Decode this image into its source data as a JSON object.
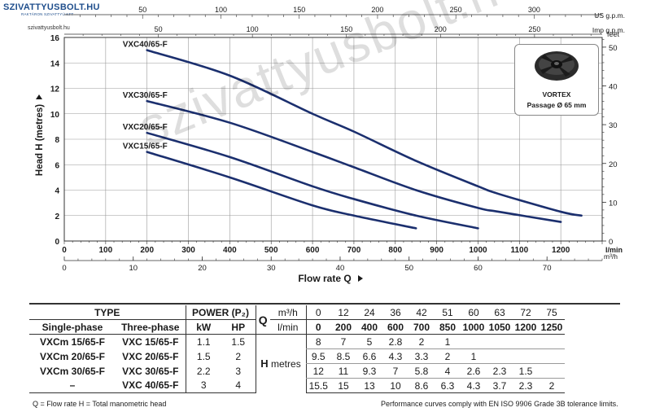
{
  "logo": {
    "main": "SZIVATTYUSBOLT.HU",
    "sub": "RAKTÁRON SZIVATTYÚ KFT",
    "small_url": "szivattyusbolt.hu"
  },
  "watermark": "szivattyusbolt.hu",
  "vortex": {
    "title": "VORTEX",
    "subtitle": "Passage Ø 65 mm"
  },
  "colors": {
    "curve": "#1b2f6e",
    "grid": "#9a9a9a",
    "axis": "#333333",
    "watermark": "#bdbdbd"
  },
  "chart_data": {
    "type": "line",
    "title": "",
    "xlabel": "Flow rate Q",
    "ylabel": "Head H (metres)",
    "x_unit": "l/min",
    "xlim": [
      0,
      1300
    ],
    "ylim": [
      0,
      16
    ],
    "grid": true,
    "x_ticks": [
      0,
      100,
      200,
      300,
      400,
      500,
      600,
      700,
      800,
      900,
      1000,
      1100,
      1200
    ],
    "y_ticks": [
      0,
      2,
      4,
      6,
      8,
      10,
      12,
      14,
      16
    ],
    "top_axis_us": {
      "unit": "US g.p.m.",
      "ticks": [
        50,
        100,
        150,
        200,
        250,
        300
      ]
    },
    "top_axis_imp": {
      "unit": "Imp g.p.m.",
      "ticks": [
        50,
        100,
        150,
        200,
        250
      ]
    },
    "right_axis_feet": {
      "unit": "feet",
      "ticks": [
        0,
        10,
        20,
        30,
        40,
        50
      ]
    },
    "bottom_axis_m3h": {
      "unit": "m³/h",
      "ticks": [
        0,
        10,
        20,
        30,
        40,
        50,
        60,
        70
      ]
    },
    "series": [
      {
        "name": "VXC15/65-F",
        "x": [
          200,
          400,
          600,
          700,
          850
        ],
        "y": [
          7,
          5,
          2.8,
          2,
          1
        ]
      },
      {
        "name": "VXC20/65-F",
        "x": [
          200,
          400,
          600,
          700,
          850,
          1000
        ],
        "y": [
          8.5,
          6.6,
          4.3,
          3.3,
          2,
          1
        ]
      },
      {
        "name": "VXC30/65-F",
        "x": [
          200,
          400,
          600,
          700,
          850,
          1000,
          1050,
          1200
        ],
        "y": [
          11,
          9.3,
          7,
          5.8,
          4,
          2.6,
          2.3,
          1.5
        ]
      },
      {
        "name": "VXC40/65-F",
        "x": [
          200,
          400,
          600,
          700,
          850,
          1000,
          1050,
          1200,
          1250
        ],
        "y": [
          15,
          13,
          10,
          8.6,
          6.3,
          4.3,
          3.7,
          2.3,
          2
        ]
      }
    ]
  },
  "table": {
    "type_header": "TYPE",
    "power_header": "POWER (P₂)",
    "q_label": "Q",
    "q_unit_m3h": "m³/h",
    "q_unit_lmin": "l/min",
    "col_single": "Single-phase",
    "col_three": "Three-phase",
    "col_kw": "kW",
    "col_hp": "HP",
    "h_label": "H",
    "h_unit": "metres",
    "q_m3h": [
      "0",
      "12",
      "24",
      "36",
      "42",
      "51",
      "60",
      "63",
      "72",
      "75"
    ],
    "q_lmin": [
      "0",
      "200",
      "400",
      "600",
      "700",
      "850",
      "1000",
      "1050",
      "1200",
      "1250"
    ],
    "rows": [
      {
        "single": "VXCm 15/65-F",
        "three": "VXC 15/65-F",
        "kw": "1.1",
        "hp": "1.5",
        "h": [
          "8",
          "7",
          "5",
          "2.8",
          "2",
          "1",
          "",
          "",
          "",
          ""
        ]
      },
      {
        "single": "VXCm 20/65-F",
        "three": "VXC 20/65-F",
        "kw": "1.5",
        "hp": "2",
        "h": [
          "9.5",
          "8.5",
          "6.6",
          "4.3",
          "3.3",
          "2",
          "1",
          "",
          "",
          ""
        ]
      },
      {
        "single": "VXCm 30/65-F",
        "three": "VXC 30/65-F",
        "kw": "2.2",
        "hp": "3",
        "h": [
          "12",
          "11",
          "9.3",
          "7",
          "5.8",
          "4",
          "2.6",
          "2.3",
          "1.5",
          ""
        ]
      },
      {
        "single": "–",
        "three": "VXC 40/65-F",
        "kw": "3",
        "hp": "4",
        "h": [
          "15.5",
          "15",
          "13",
          "10",
          "8.6",
          "6.3",
          "4.3",
          "3.7",
          "2.3",
          "2"
        ]
      }
    ]
  },
  "footer": {
    "left": "Q = Flow rate  H = Total manometric head",
    "right": "Performance curves comply with EN ISO 9906 Grade 3B tolerance limits."
  }
}
